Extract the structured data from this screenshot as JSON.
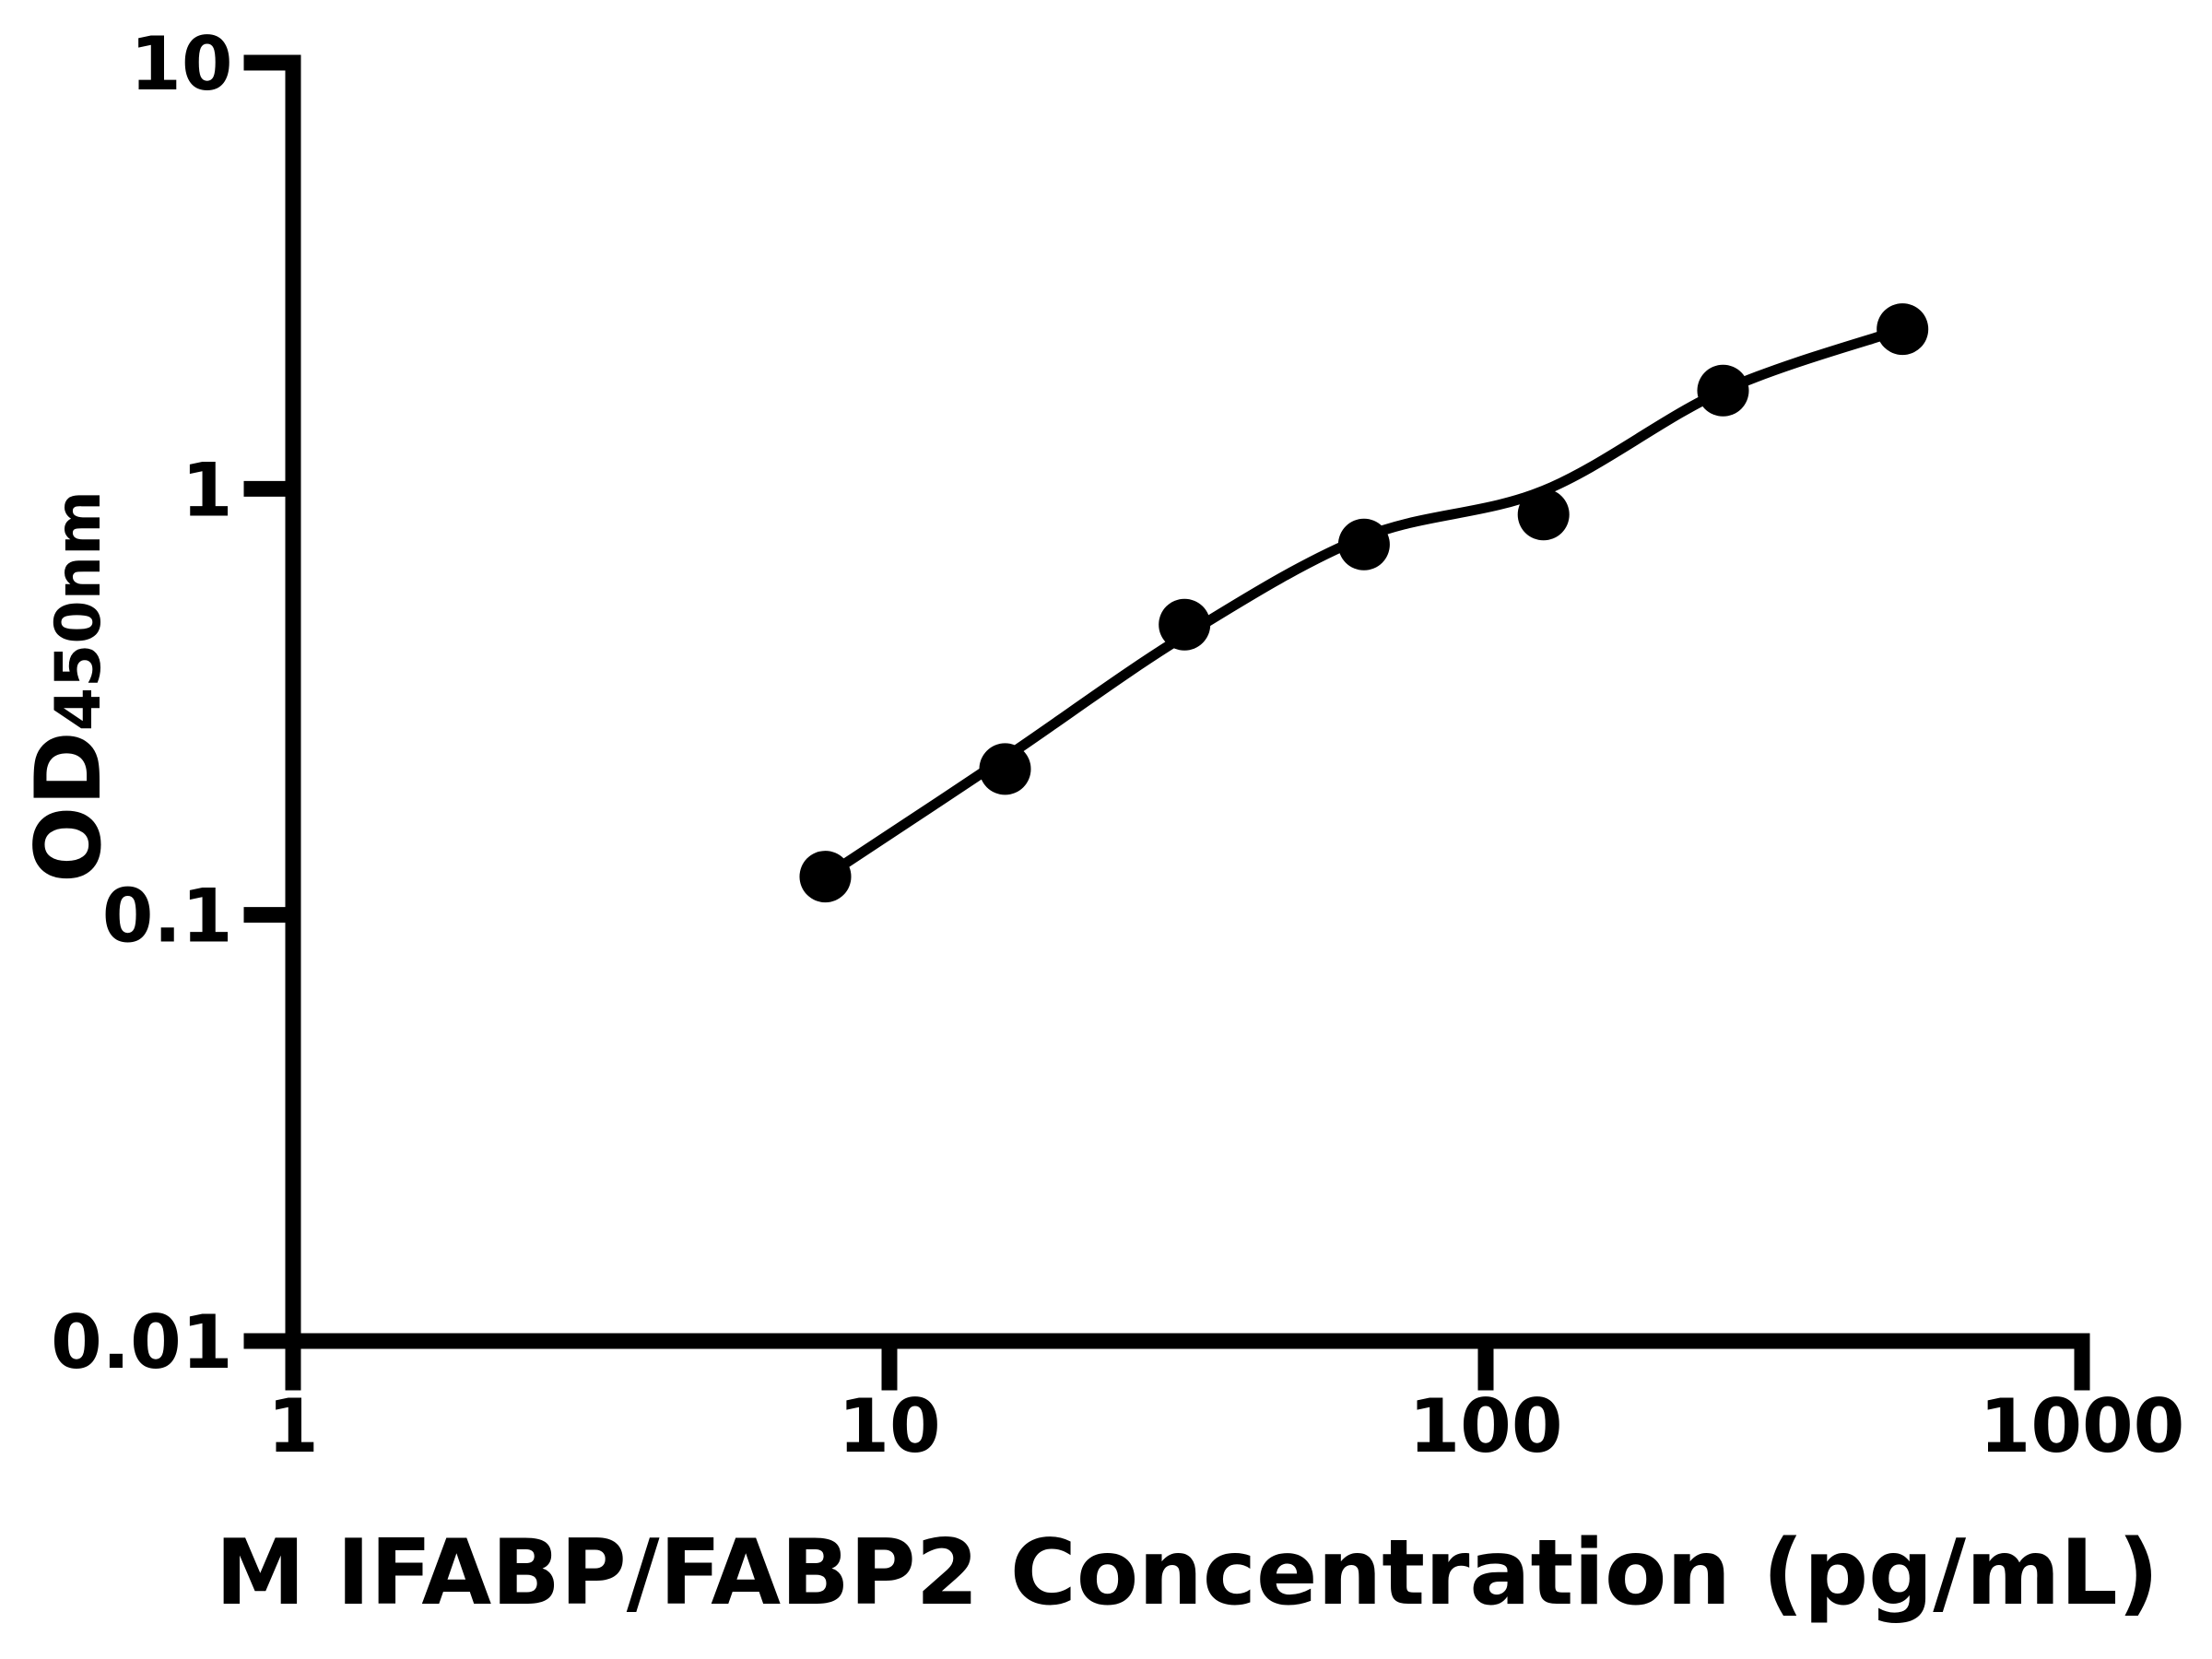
{
  "chart_data": {
    "type": "scatter",
    "subtype": "standard-curve-with-fit-line",
    "title": "",
    "xlabel": "M IFABP/FABP2 Concentration (pg/mL)",
    "ylabel": "OD",
    "ylabel_sub": "450nm",
    "xscale": "log",
    "yscale": "log",
    "xlim": [
      1,
      1000
    ],
    "ylim": [
      0.01,
      10
    ],
    "grid": false,
    "legend": null,
    "x": [
      7.81,
      15.63,
      31.25,
      62.5,
      125,
      250,
      500
    ],
    "y": [
      0.123,
      0.22,
      0.48,
      0.74,
      0.87,
      1.7,
      2.37
    ],
    "fit_y": [
      0.123,
      0.234,
      0.452,
      0.77,
      0.99,
      1.7,
      2.37
    ],
    "x_ticks": [
      {
        "value": 1,
        "label": "1"
      },
      {
        "value": 10,
        "label": "10"
      },
      {
        "value": 100,
        "label": "100"
      },
      {
        "value": 1000,
        "label": "1000"
      }
    ],
    "y_ticks": [
      {
        "value": 10,
        "label": "10"
      },
      {
        "value": 1,
        "label": "1"
      },
      {
        "value": 0.1,
        "label": "0.1"
      },
      {
        "value": 0.01,
        "label": "0.01"
      }
    ],
    "colors": {
      "marker": "#000000",
      "line": "#000000",
      "axis": "#000000",
      "text": "#000000",
      "background": "#ffffff"
    }
  }
}
